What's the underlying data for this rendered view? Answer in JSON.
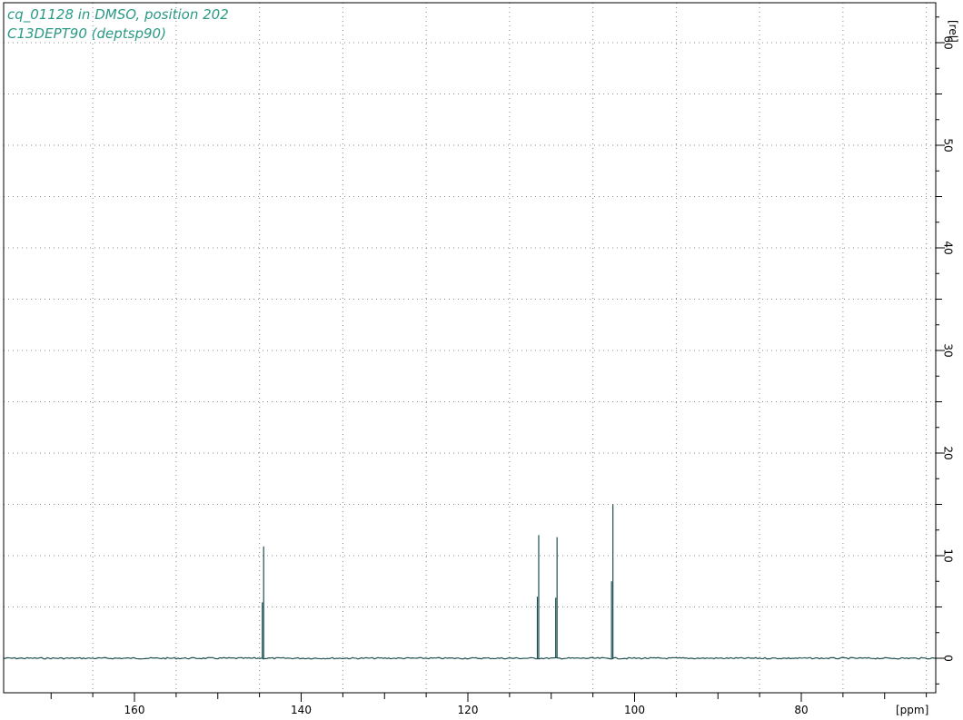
{
  "chart_data": {
    "type": "line",
    "title_lines": [
      "cq_01128 in DMSO, position 202",
      "C13DEPT90 (deptsp90)"
    ],
    "xlabel": "[ppm]",
    "ylabel": "[rel]",
    "xlim": [
      175,
      64
    ],
    "ylim": [
      -3,
      66
    ],
    "x_reversed": true,
    "x_major_ticks": [
      160,
      140,
      120,
      100,
      80
    ],
    "x_grid": [
      165,
      155,
      145,
      135,
      125,
      115,
      105,
      95,
      85,
      75,
      65
    ],
    "y_major_ticks": [
      0,
      10,
      20,
      30,
      40,
      50,
      60
    ],
    "y_grid": [
      5,
      10,
      15,
      20,
      25,
      30,
      35,
      40,
      45,
      50,
      55,
      60,
      65
    ],
    "grid": true,
    "baseline": 0,
    "series": [
      {
        "peaks": [
          {
            "x": 144.5,
            "y": 10.9
          },
          {
            "x": 111.5,
            "y": 12.0
          },
          {
            "x": 109.3,
            "y": 11.8
          },
          {
            "x": 102.6,
            "y": 15.0
          }
        ]
      }
    ],
    "colors": {
      "spectrum": "#1f4f4f",
      "grid": "#8a8a8a",
      "title": "#2a9a86",
      "axis": "#000000"
    }
  }
}
